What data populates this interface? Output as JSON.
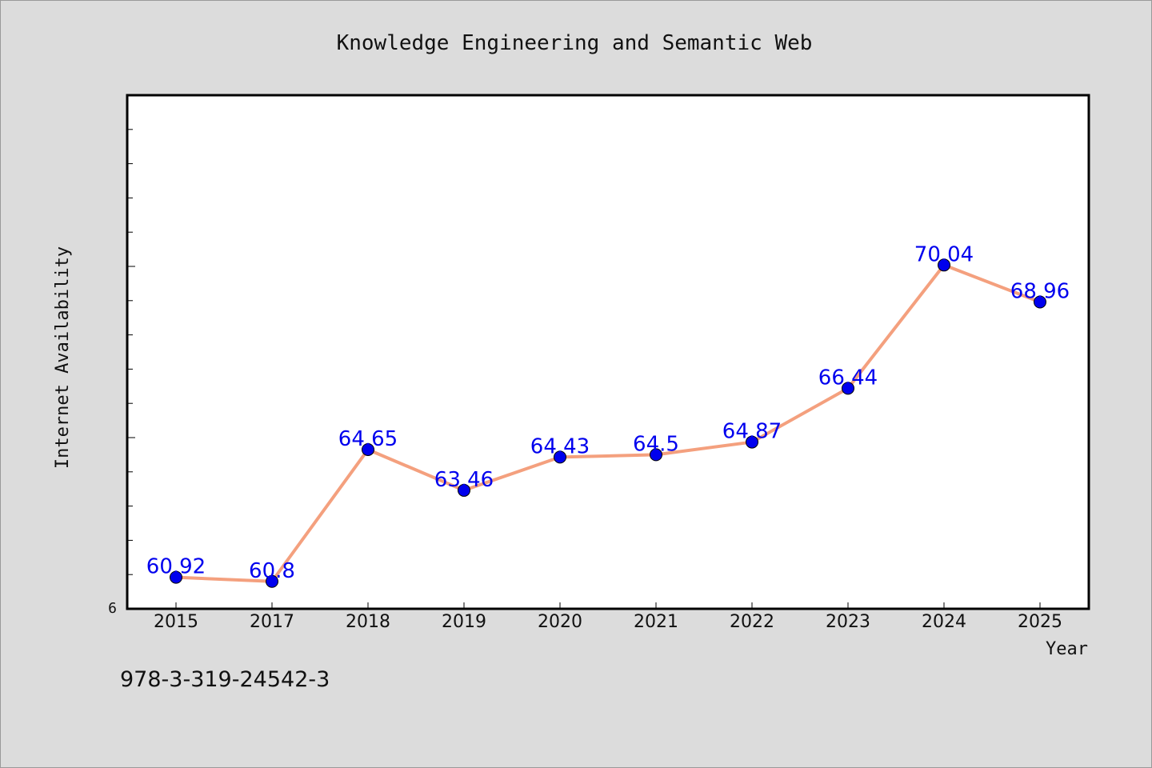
{
  "chart_data": {
    "type": "line",
    "title": "Knowledge Engineering and Semantic Web",
    "xlabel": "Year",
    "ylabel": "Internet Availability",
    "categories": [
      "2015",
      "2017",
      "2018",
      "2019",
      "2020",
      "2021",
      "2022",
      "2023",
      "2024",
      "2025"
    ],
    "series": [
      {
        "values": [
          60.92,
          60.8,
          64.65,
          63.46,
          64.43,
          64.5,
          64.87,
          66.44,
          70.04,
          68.96
        ],
        "labels": [
          "60.92",
          "60.8",
          "64.65",
          "63.46",
          "64.43",
          "64.5",
          "64.87",
          "66.44",
          "70.04",
          "68.96"
        ]
      }
    ],
    "ylim": [
      60,
      75
    ],
    "y_tick_label": "6",
    "grid": false,
    "colors": {
      "line": "#f4a07e",
      "marker": "#0000ee",
      "label": "#0000ee"
    }
  },
  "footer": {
    "code": "978-3-319-24542-3"
  }
}
